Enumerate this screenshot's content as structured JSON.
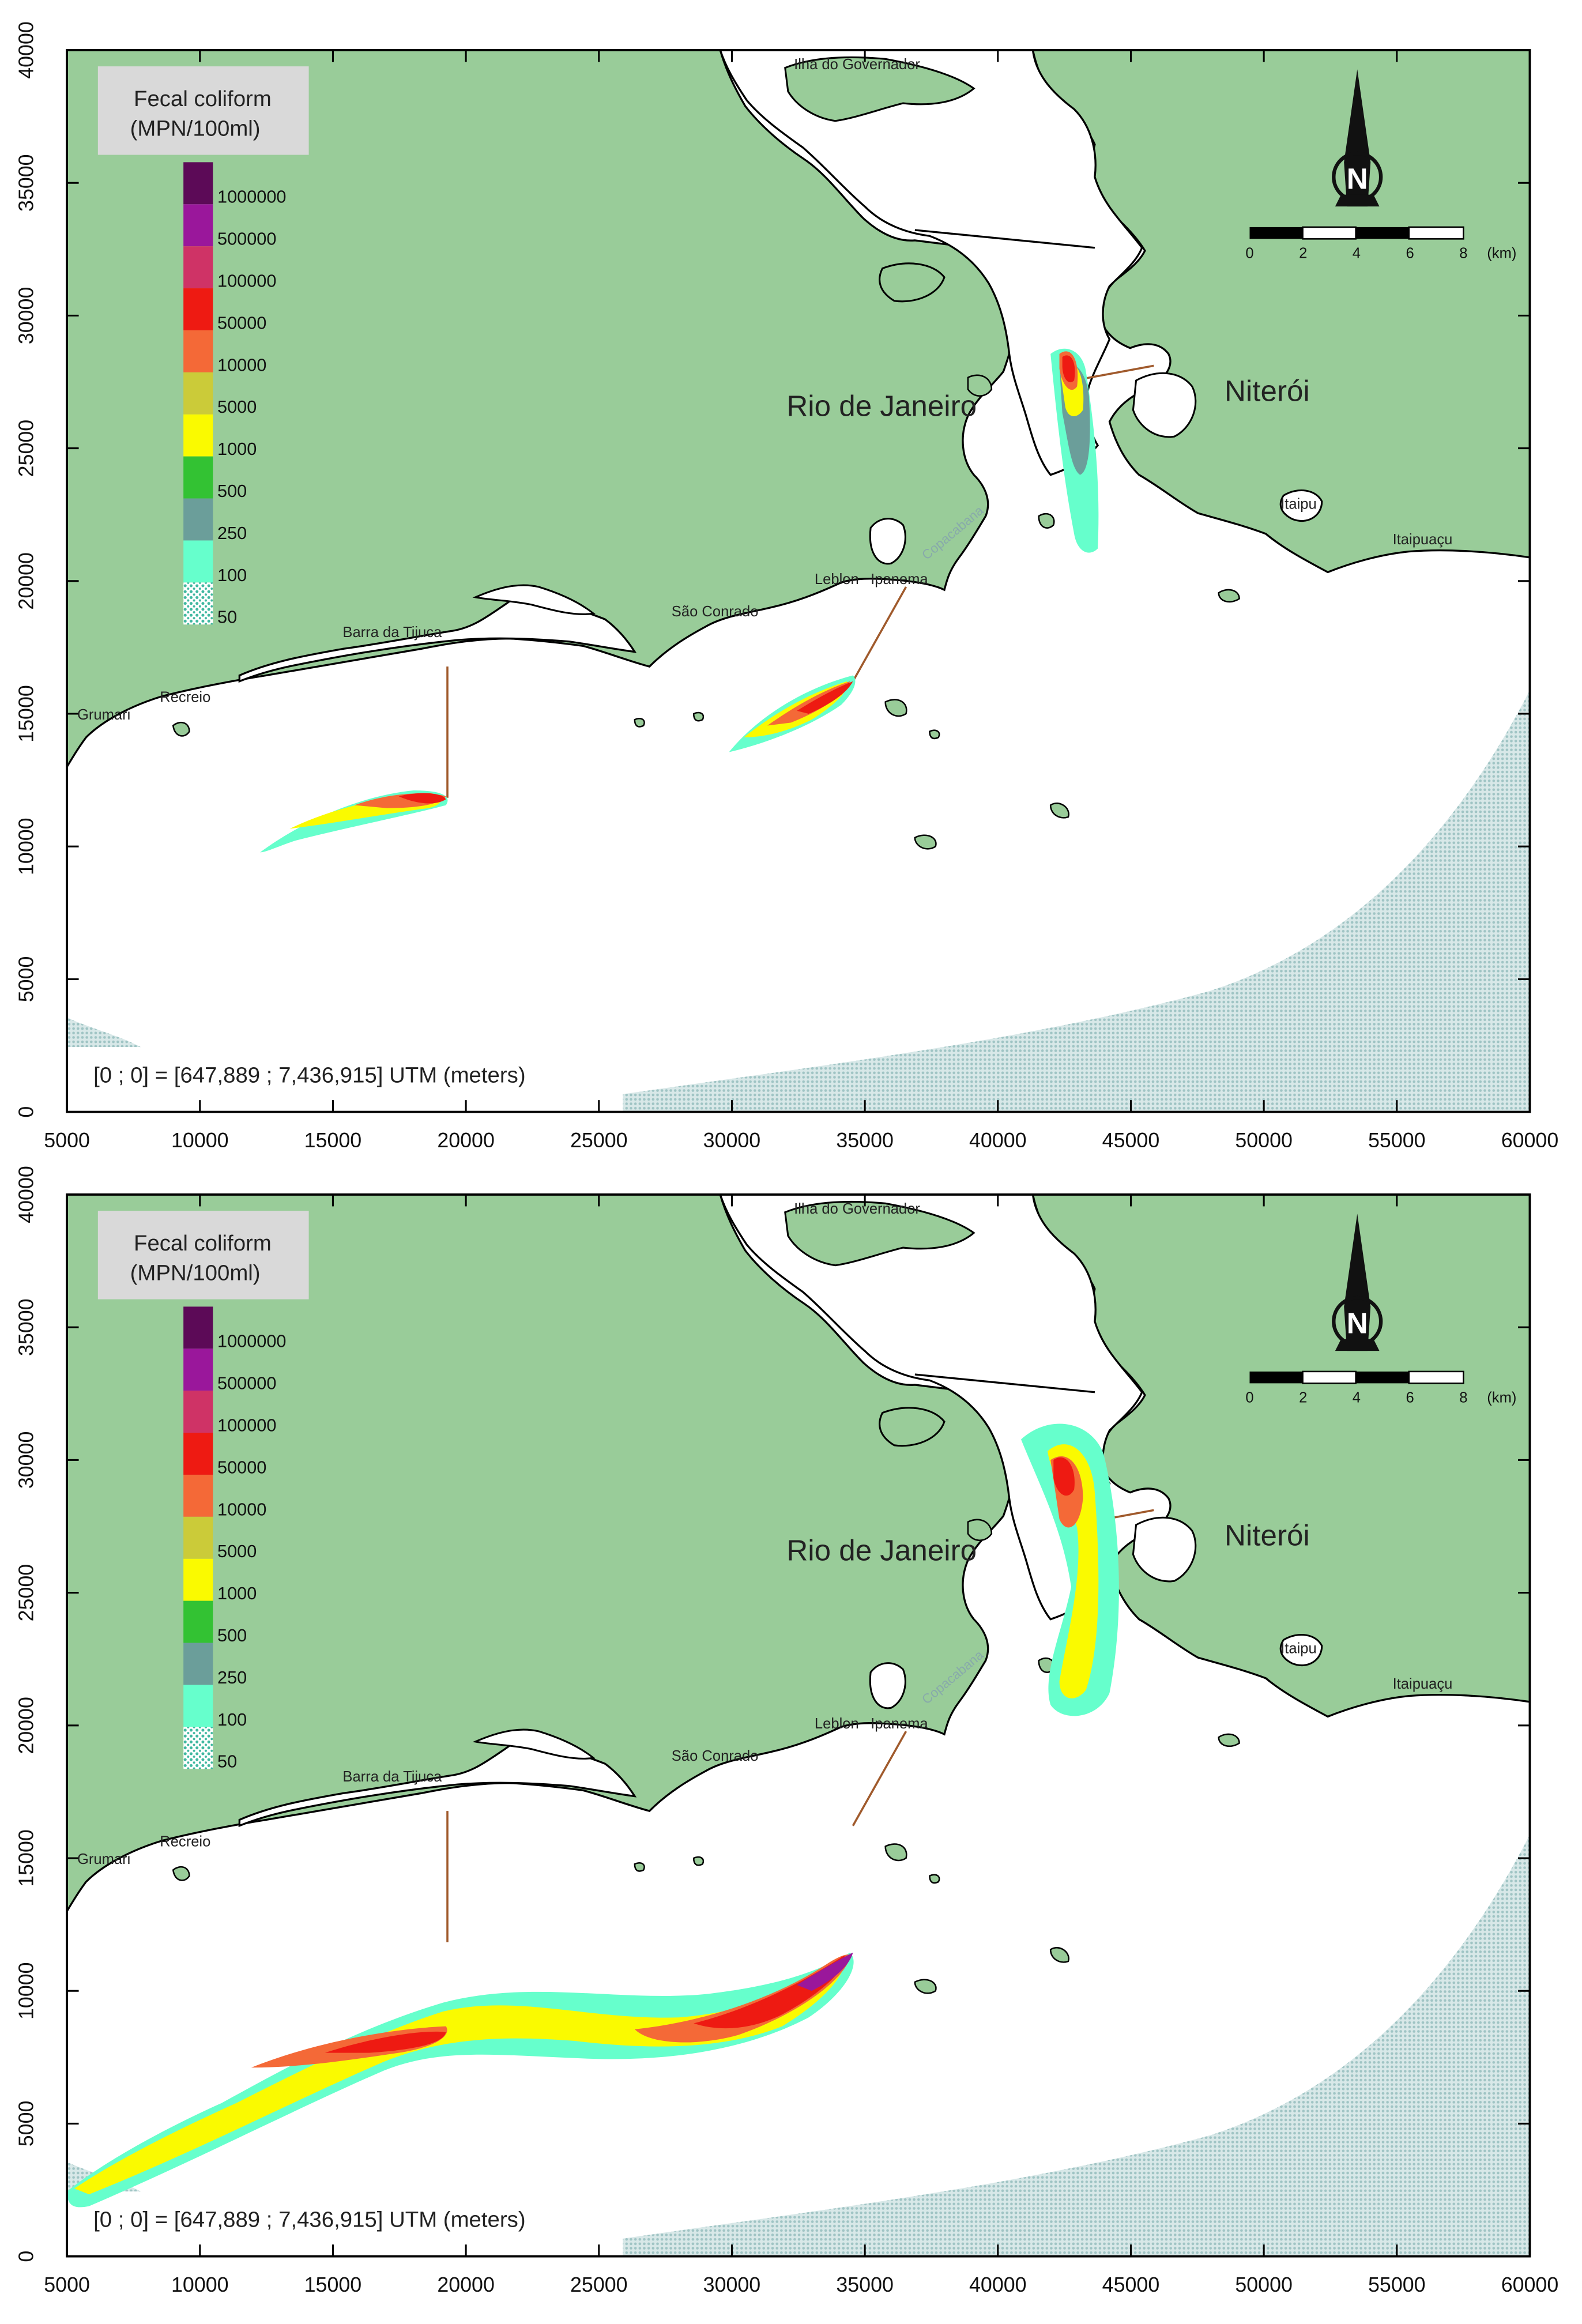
{
  "panels": [
    {
      "id": "top",
      "legend": {
        "title_line1": "Fecal coliform",
        "title_line2": "(MPN/100ml)",
        "levels": [
          {
            "label": "1000000",
            "color": "#5c0a57"
          },
          {
            "label": "500000",
            "color": "#9a179b"
          },
          {
            "label": "100000",
            "color": "#cf3366"
          },
          {
            "label": "50000",
            "color": "#ee1a12"
          },
          {
            "label": "10000",
            "color": "#f46937"
          },
          {
            "label": "5000",
            "color": "#cbcb39"
          },
          {
            "label": "1000",
            "color": "#fafa00"
          },
          {
            "label": "500",
            "color": "#33c233"
          },
          {
            "label": "250",
            "color": "#6b9e9a"
          },
          {
            "label": "100",
            "color": "#66ffcc"
          },
          {
            "label": "50",
            "color": "#5ec4b2"
          }
        ]
      },
      "place_labels": {
        "ilha": "Ilha do Governador",
        "rio": "Rio de Janeiro",
        "niteroi": "Niterói",
        "itaipu": "Itaipu",
        "itaipuacu": "Itaipuaçu",
        "leblon": "Leblon",
        "ipanema": "Ipanema",
        "copacabana": "Copacabana",
        "sao_conrado": "São Conrado",
        "barra": "Barra da Tijuca",
        "recreio": "Recreio",
        "grumari": "Grumari"
      },
      "scale_bar": {
        "ticks": [
          "0",
          "2",
          "4",
          "6",
          "8"
        ],
        "unit": "(km)"
      },
      "north_letter": "N",
      "origin_note": "[0 ; 0] = [647,889  ; 7,436,915]  UTM (meters)",
      "x_ticks": [
        "5000",
        "10000",
        "15000",
        "20000",
        "25000",
        "30000",
        "35000",
        "40000",
        "45000",
        "50000",
        "55000",
        "60000"
      ],
      "y_ticks": [
        "0",
        "5000",
        "10000",
        "15000",
        "20000",
        "25000",
        "30000",
        "35000",
        "40000"
      ]
    },
    {
      "id": "bottom",
      "legend": {
        "title_line1": "Fecal coliform",
        "title_line2": "(MPN/100ml)",
        "levels": [
          {
            "label": "1000000",
            "color": "#5c0a57"
          },
          {
            "label": "500000",
            "color": "#9a179b"
          },
          {
            "label": "100000",
            "color": "#cf3366"
          },
          {
            "label": "50000",
            "color": "#ee1a12"
          },
          {
            "label": "10000",
            "color": "#f46937"
          },
          {
            "label": "5000",
            "color": "#cbcb39"
          },
          {
            "label": "1000",
            "color": "#fafa00"
          },
          {
            "label": "500",
            "color": "#33c233"
          },
          {
            "label": "250",
            "color": "#6b9e9a"
          },
          {
            "label": "100",
            "color": "#66ffcc"
          },
          {
            "label": "50",
            "color": "#5ec4b2"
          }
        ]
      },
      "place_labels": {
        "ilha": "Ilha do Governador",
        "rio": "Rio de Janeiro",
        "niteroi": "Niterói",
        "itaipu": "Itaipu",
        "itaipuacu": "Itaipuaçu",
        "leblon": "Leblon",
        "ipanema": "Ipanema",
        "copacabana": "Copacabana",
        "sao_conrado": "São Conrado",
        "barra": "Barra da Tijuca",
        "recreio": "Recreio",
        "grumari": "Grumari"
      },
      "scale_bar": {
        "ticks": [
          "0",
          "2",
          "4",
          "6",
          "8"
        ],
        "unit": "(km)"
      },
      "north_letter": "N",
      "origin_note": "[0 ; 0] = [647,889  ; 7,436,915]  UTM (meters)",
      "x_ticks": [
        "5000",
        "10000",
        "15000",
        "20000",
        "25000",
        "30000",
        "35000",
        "40000",
        "45000",
        "50000",
        "55000",
        "60000"
      ],
      "y_ticks": [
        "0",
        "5000",
        "10000",
        "15000",
        "20000",
        "25000",
        "30000",
        "35000",
        "40000"
      ]
    }
  ],
  "colors": {
    "land": "#99cc99",
    "sea": "#ffffff",
    "coast": "#000000",
    "offshore_hatch": "#c4dcdc",
    "legend_box": "#d9d9d9",
    "outfall_line": "#a05a2c"
  }
}
